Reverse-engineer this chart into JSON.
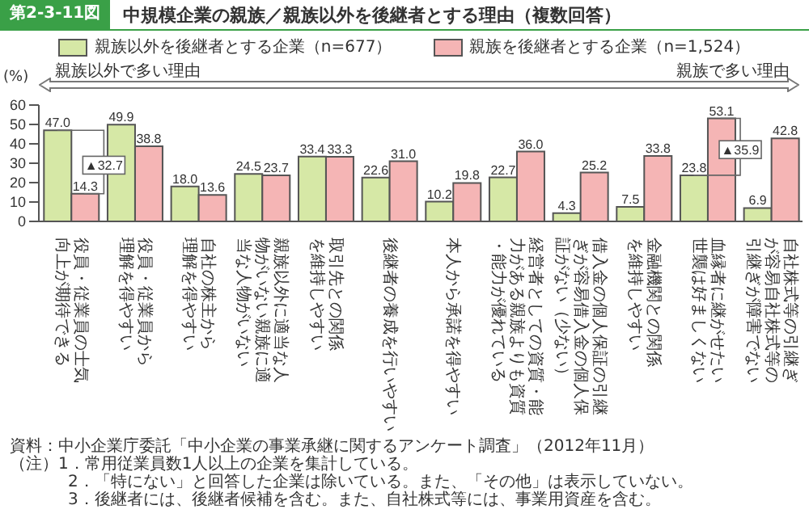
{
  "chart_data": {
    "type": "bar",
    "title": "中規模企業の親族／親族以外を後継者とする理由（複数回答）",
    "ylabel": "(%)",
    "categories": [
      "役員・従業員の士気向上が期待できる",
      "役員・従業員から理解を得やすい",
      "自社の株主から理解を得やすい",
      "親族以外に適当な人物がいない親族に適当な人物がいない",
      "取引先との関係を維持しやすい",
      "後継者の養成を行いやすい",
      "本人から承諾を得やすい",
      "経営者としての資質・能力がある親族よりも資質・能力が優れている",
      "借入金の個人保証の引継ぎが容易借入金の個人保証がない（少ない）",
      "金融機関との関係を維持しやすい",
      "血縁者に継がせたい世襲は好ましくない",
      "自社株式等の引継ぎが容易自社株式等の引継ぎが障害でない"
    ],
    "series": [
      {
        "name": "親族以外を後継者とする企業（n=677）",
        "color": "#d6e8a6",
        "values": [
          47.0,
          49.9,
          18.0,
          24.5,
          33.4,
          22.6,
          10.2,
          22.7,
          4.3,
          7.5,
          23.8,
          6.9
        ],
        "value_labels": [
          "47.0",
          "49.9",
          "18.0",
          "24.5",
          "33.4",
          "22.6",
          "10.2",
          "22.7",
          "4.3",
          "7.5",
          "23.8",
          "6.9"
        ]
      },
      {
        "name": "親族を後継者とする企業（n=1,524）",
        "color": "#f5b5b5",
        "values": [
          14.3,
          38.8,
          13.6,
          23.7,
          33.3,
          31.0,
          19.8,
          36.0,
          25.2,
          33.8,
          53.1,
          42.8
        ],
        "value_labels": [
          "14.3",
          "38.8",
          "13.6",
          "23.7",
          "33.3",
          "31.0",
          "19.8",
          "36.0",
          "25.2",
          "33.8",
          "53.1",
          "42.8"
        ]
      }
    ],
    "ylim": [
      0,
      60
    ],
    "yticks": [
      0,
      10,
      20,
      30,
      40,
      50,
      60
    ],
    "grid": false,
    "legend": "top",
    "annotations": [
      "第2-3-11図",
      "親族以外で多い理由",
      "親族で多い理由",
      {
        "text": "▲32.7",
        "x": "役員・従業員の士気向上が期待できる",
        "y": 29
      },
      {
        "text": "▲35.9",
        "x": "血縁者に継がせたい世襲は好ましくない",
        "y": 37
      },
      "資料：中小企業庁委託「中小企業の事業承継に関するアンケート調査」（2012年11月）",
      "（注）1．常用従業員数1人以上の企業を集計している。",
      "2．「特にない」と回答した企業は除いている。また、「その他」は表示していない。",
      "3．後継者には、後継者候補を含む。また、自社株式等には、事業用資産を含む。"
    ]
  }
}
